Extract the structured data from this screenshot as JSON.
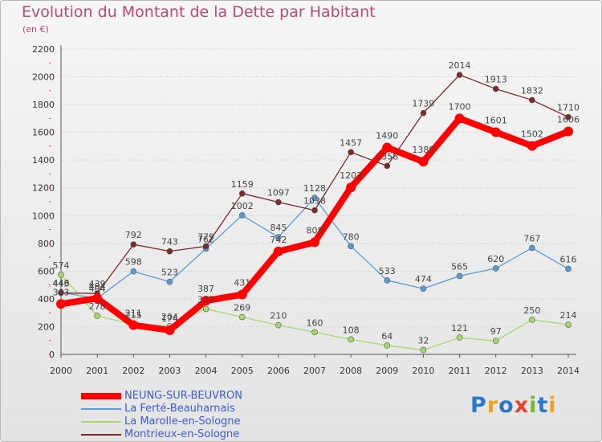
{
  "title": "Evolution du Montant de la Dette par Habitant",
  "subtitle": "(en €)",
  "colors": {
    "title": "#b84a77",
    "legend_text": "#3b5bd6",
    "grid": "#c8c8c8"
  },
  "logo": {
    "text": "Proxiti",
    "letters": [
      {
        "ch": "P",
        "color": "#2a79c8"
      },
      {
        "ch": "r",
        "color": "#f0a020"
      },
      {
        "ch": "o",
        "color": "#2a79c8"
      },
      {
        "ch": "x",
        "color": "#e8402a"
      },
      {
        "ch": "i",
        "color": "#7ab730"
      },
      {
        "ch": "t",
        "color": "#2a79c8"
      },
      {
        "ch": "i",
        "color": "#f0a020"
      }
    ]
  },
  "chart_data": {
    "type": "line",
    "title": "Evolution du Montant de la Dette par Habitant",
    "subtitle": "(en €)",
    "xlabel": "",
    "ylabel": "",
    "ylim": [
      0,
      2200
    ],
    "y_ticks": [
      0,
      200,
      400,
      600,
      800,
      1000,
      1200,
      1400,
      1600,
      1800,
      2000,
      2200
    ],
    "grid": "horizontal dotted",
    "legend_position": "bottom-left",
    "x": [
      "2000",
      "2001",
      "2002",
      "2003",
      "2004",
      "2005",
      "2006",
      "2007",
      "2008",
      "2009",
      "2010",
      "2011",
      "2012",
      "2013",
      "2014"
    ],
    "series": [
      {
        "name": "NEUNG-SUR-BEUVRON",
        "color": "#ff0000",
        "values": [
          363,
          404,
          211,
          174,
          387,
          431,
          742,
          808,
          1203,
          1490,
          1389,
          1700,
          1601,
          1502,
          1606
        ]
      },
      {
        "name": "La Ferté-Beauharnais",
        "color": "#5b9bd5",
        "values": [
          446,
          404,
          598,
          523,
          762,
          1002,
          845,
          1128,
          780,
          533,
          474,
          565,
          620,
          767,
          616
        ]
      },
      {
        "name": "La Marolle-en-Sologne",
        "color": "#a8d86c",
        "values": [
          574,
          278,
          215,
          204,
          327,
          269,
          210,
          160,
          108,
          64,
          32,
          121,
          97,
          250,
          214
        ]
      },
      {
        "name": "Montrieux-en-Sologne",
        "color": "#7b2a2a",
        "values": [
          443,
          439,
          792,
          743,
          779,
          1159,
          1097,
          1038,
          1457,
          1358,
          1739,
          2014,
          1913,
          1832,
          1710
        ]
      }
    ]
  }
}
